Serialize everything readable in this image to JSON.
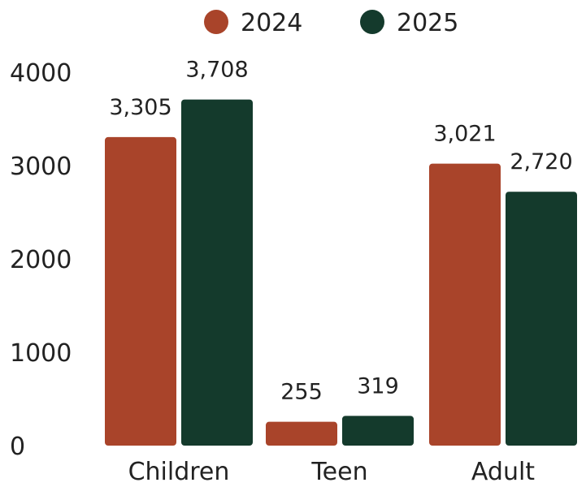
{
  "chart_data": {
    "type": "bar",
    "categories": [
      "Children",
      "Teen",
      "Adult"
    ],
    "series": [
      {
        "name": "2024",
        "values": [
          3305,
          255,
          3021
        ],
        "labels": [
          "3,305",
          "255",
          "3,021"
        ],
        "color": "#a9442a"
      },
      {
        "name": "2025",
        "values": [
          3708,
          319,
          2720
        ],
        "labels": [
          "3,708",
          "319",
          "2,720"
        ],
        "color": "#143a2c"
      }
    ],
    "yticks": [
      "0",
      "1000",
      "2000",
      "3000",
      "4000"
    ],
    "ylim": [
      0,
      4000
    ],
    "title": "",
    "xlabel": "",
    "ylabel": "",
    "legend": "top-center",
    "grid": false
  }
}
